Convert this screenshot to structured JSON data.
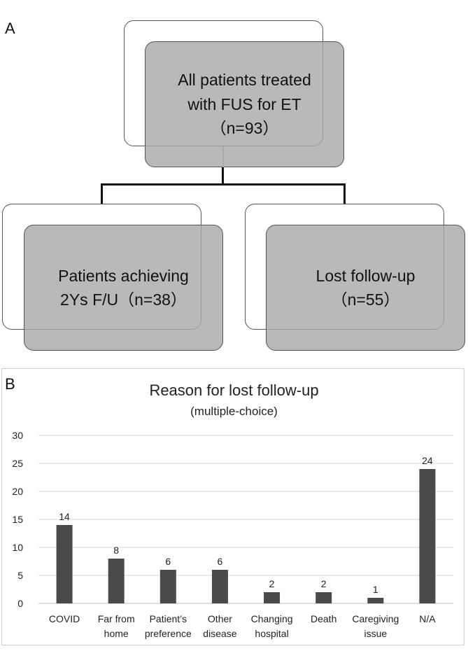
{
  "panel_a": {
    "letter": "A",
    "top_box": {
      "line1": "All patients treated",
      "line2": "with FUS for ET",
      "line3": "（n=93）"
    },
    "left_box": {
      "line1": "Patients achieving",
      "line2": "2Ys F/U（n=38）"
    },
    "right_box": {
      "line1": "Lost follow-up",
      "line2": "（n=55）"
    }
  },
  "panel_b": {
    "letter": "B"
  },
  "chart_data": {
    "type": "bar",
    "title": "Reason for lost follow-up",
    "subtitle": "(multiple-choice)",
    "categories": [
      [
        "COVID"
      ],
      [
        "Far from",
        "home"
      ],
      [
        "Patient’s",
        "preference"
      ],
      [
        "Other",
        "disease"
      ],
      [
        "Changing",
        "hospital"
      ],
      [
        "Death"
      ],
      [
        "Caregiving",
        "issue"
      ],
      [
        "N/A"
      ]
    ],
    "values": [
      14,
      8,
      6,
      6,
      2,
      2,
      1,
      24
    ],
    "data_labels": [
      "14",
      "8",
      "6",
      "6",
      "2",
      "2",
      "1",
      "24"
    ],
    "ylim": [
      0,
      30
    ],
    "yticks": [
      0,
      5,
      10,
      15,
      20,
      25,
      30
    ],
    "grid": true,
    "bar_color": "#4a4a4a",
    "grid_color": "#d9d9d9"
  }
}
